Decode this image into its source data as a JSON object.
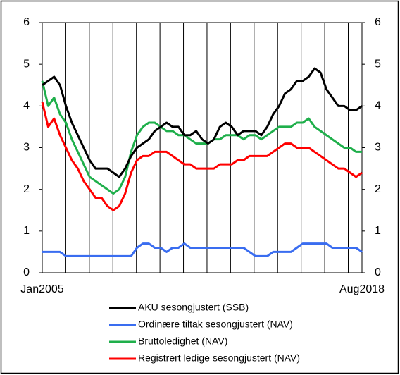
{
  "chart_data": {
    "type": "line",
    "categories": [
      "Jan2005",
      null,
      null,
      null,
      null,
      null,
      null,
      null,
      null,
      null,
      null,
      null,
      null,
      null,
      null,
      null,
      null,
      null,
      null,
      null,
      null,
      null,
      null,
      null,
      null,
      null,
      null,
      null,
      null,
      null,
      null,
      null,
      null,
      null,
      null,
      null,
      null,
      null,
      null,
      null,
      null,
      null,
      null,
      null,
      null,
      null,
      null,
      null,
      null,
      null,
      null,
      null,
      null,
      null,
      "Aug2018"
    ],
    "series": [
      {
        "name": "AKU sesongjustert (SSB)",
        "color": "#000000",
        "values": [
          4.5,
          4.6,
          4.7,
          4.5,
          4.0,
          3.6,
          3.3,
          3.0,
          2.7,
          2.5,
          2.5,
          2.5,
          2.4,
          2.3,
          2.5,
          2.8,
          3.0,
          3.1,
          3.2,
          3.4,
          3.5,
          3.6,
          3.5,
          3.5,
          3.3,
          3.3,
          3.4,
          3.2,
          3.1,
          3.2,
          3.5,
          3.6,
          3.5,
          3.3,
          3.4,
          3.4,
          3.4,
          3.3,
          3.5,
          3.8,
          4.0,
          4.3,
          4.4,
          4.6,
          4.6,
          4.7,
          4.9,
          4.8,
          4.4,
          4.2,
          4.0,
          4.0,
          3.9,
          3.9,
          4.0
        ]
      },
      {
        "name": "Ordinære tiltak sesongjustert (NAV)",
        "color": "#3a6df0",
        "values": [
          0.5,
          0.5,
          0.5,
          0.5,
          0.4,
          0.4,
          0.4,
          0.4,
          0.4,
          0.4,
          0.4,
          0.4,
          0.4,
          0.4,
          0.4,
          0.4,
          0.6,
          0.7,
          0.7,
          0.6,
          0.6,
          0.5,
          0.6,
          0.6,
          0.7,
          0.6,
          0.6,
          0.6,
          0.6,
          0.6,
          0.6,
          0.6,
          0.6,
          0.6,
          0.6,
          0.5,
          0.4,
          0.4,
          0.4,
          0.5,
          0.5,
          0.5,
          0.5,
          0.6,
          0.7,
          0.7,
          0.7,
          0.7,
          0.7,
          0.6,
          0.6,
          0.6,
          0.6,
          0.6,
          0.5
        ]
      },
      {
        "name": "Bruttoledighet (NAV)",
        "color": "#1faf4b",
        "values": [
          4.6,
          4.0,
          4.2,
          3.8,
          3.6,
          3.2,
          2.9,
          2.6,
          2.3,
          2.2,
          2.1,
          2.0,
          1.9,
          2.0,
          2.3,
          2.9,
          3.3,
          3.5,
          3.6,
          3.6,
          3.5,
          3.4,
          3.4,
          3.3,
          3.3,
          3.2,
          3.1,
          3.1,
          3.1,
          3.2,
          3.2,
          3.3,
          3.3,
          3.3,
          3.2,
          3.3,
          3.3,
          3.2,
          3.3,
          3.4,
          3.5,
          3.5,
          3.5,
          3.6,
          3.6,
          3.7,
          3.5,
          3.4,
          3.3,
          3.2,
          3.1,
          3.0,
          3.0,
          2.9,
          2.9
        ]
      },
      {
        "name": "Registrert ledige sesongjustert (NAV)",
        "color": "#ff0000",
        "values": [
          4.1,
          3.5,
          3.7,
          3.3,
          3.0,
          2.7,
          2.5,
          2.2,
          2.0,
          1.8,
          1.8,
          1.6,
          1.5,
          1.6,
          1.9,
          2.4,
          2.7,
          2.8,
          2.8,
          2.9,
          2.9,
          2.9,
          2.8,
          2.7,
          2.6,
          2.6,
          2.5,
          2.5,
          2.5,
          2.5,
          2.6,
          2.6,
          2.6,
          2.7,
          2.7,
          2.8,
          2.8,
          2.8,
          2.8,
          2.9,
          3.0,
          3.1,
          3.1,
          3.0,
          3.0,
          3.0,
          2.9,
          2.8,
          2.7,
          2.6,
          2.5,
          2.5,
          2.4,
          2.3,
          2.4
        ]
      }
    ],
    "ylim": [
      0,
      6
    ],
    "yticks": [
      0,
      1,
      2,
      3,
      4,
      5,
      6
    ],
    "y2lim": [
      0,
      6
    ],
    "y2ticks": [
      0,
      1,
      2,
      3,
      4,
      5,
      6
    ],
    "legend": "bottom"
  }
}
